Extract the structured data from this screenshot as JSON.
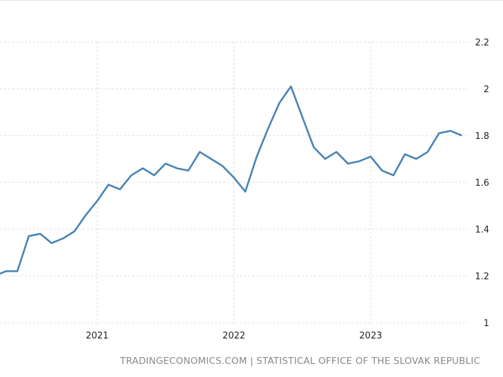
{
  "chart_data": {
    "type": "line",
    "title": "",
    "xlabel": "",
    "ylabel": "",
    "ylim": [
      1,
      2.2
    ],
    "yticks": [
      "1",
      "1.2",
      "1.4",
      "1.6",
      "1.8",
      "2",
      "2.2"
    ],
    "xticks": [
      "2021",
      "2022",
      "2023"
    ],
    "grid": true,
    "series": [
      {
        "name": "Slovakia",
        "color": "#4682b4",
        "x": [
          "2020-04",
          "2020-05",
          "2020-06",
          "2020-07",
          "2020-08",
          "2020-09",
          "2020-10",
          "2020-11",
          "2020-12",
          "2021-01",
          "2021-02",
          "2021-03",
          "2021-04",
          "2021-05",
          "2021-06",
          "2021-07",
          "2021-08",
          "2021-09",
          "2021-10",
          "2021-11",
          "2021-12",
          "2022-01",
          "2022-02",
          "2022-03",
          "2022-04",
          "2022-05",
          "2022-06",
          "2022-07",
          "2022-08",
          "2022-09",
          "2022-10",
          "2022-11",
          "2022-12",
          "2023-01",
          "2023-02",
          "2023-03",
          "2023-04",
          "2023-05",
          "2023-06",
          "2023-07",
          "2023-08",
          "2023-09"
        ],
        "values": [
          1.2,
          1.22,
          1.22,
          1.37,
          1.38,
          1.34,
          1.36,
          1.39,
          1.46,
          1.52,
          1.59,
          1.57,
          1.63,
          1.66,
          1.63,
          1.68,
          1.66,
          1.65,
          1.73,
          1.7,
          1.67,
          1.62,
          1.56,
          1.71,
          1.83,
          1.94,
          2.01,
          1.88,
          1.75,
          1.7,
          1.73,
          1.68,
          1.69,
          1.71,
          1.65,
          1.63,
          1.72,
          1.7,
          1.73,
          1.81,
          1.82,
          1.8
        ]
      }
    ]
  },
  "footer": "TRADINGECONOMICS.COM | STATISTICAL OFFICE OF THE SLOVAK REPUBLIC"
}
